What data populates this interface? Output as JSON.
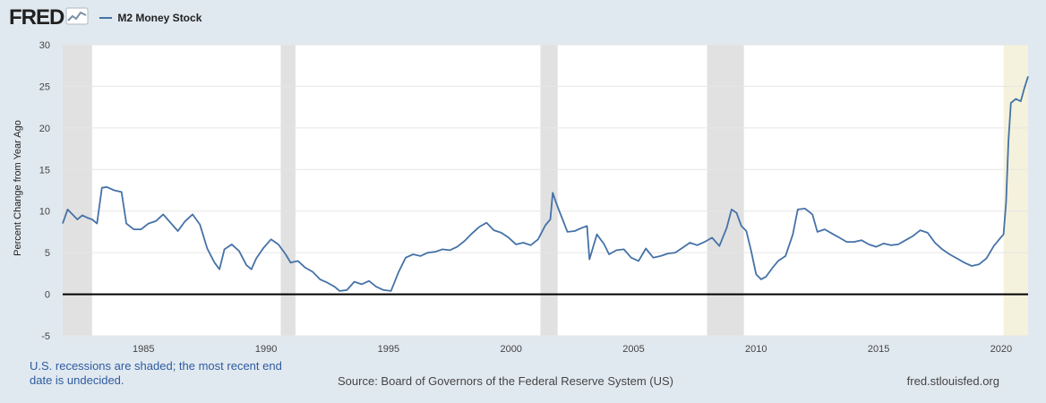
{
  "header": {
    "logo_text": "FRED",
    "logo_icon": "line-chart-icon",
    "legend_label": "M2 Money Stock"
  },
  "footer": {
    "note": "U.S. recessions are shaded; the most recent end date is undecided.",
    "source": "Source: Board of Governors of the Federal Reserve System (US)",
    "site": "fred.stlouisfed.org"
  },
  "colors": {
    "line": "#4572a7",
    "recession": "#e1e1e1",
    "undecided": "#f4f2dc",
    "zero_line": "#000000",
    "background": "#e1e9f0"
  },
  "chart_data": {
    "type": "line",
    "title": "",
    "xlabel": "",
    "ylabel": "Percent Change from Year Ago",
    "xlim": [
      1981.7,
      2021.1
    ],
    "ylim": [
      -5,
      30
    ],
    "yticks": [
      -5,
      0,
      5,
      10,
      15,
      20,
      25,
      30
    ],
    "xticks": [
      1985,
      1990,
      1995,
      2000,
      2005,
      2010,
      2015,
      2020
    ],
    "grid": true,
    "legend": "top-left",
    "recessions": [
      {
        "start": 1981.7,
        "end": 1982.9
      },
      {
        "start": 1990.6,
        "end": 1991.2
      },
      {
        "start": 2001.2,
        "end": 2001.9
      },
      {
        "start": 2008.0,
        "end": 2009.5
      }
    ],
    "undecided_recession": {
      "start": 2020.1,
      "end": 2021.1
    },
    "series": [
      {
        "name": "M2 Money Stock",
        "points": [
          [
            1981.7,
            8.5
          ],
          [
            1981.9,
            10.2
          ],
          [
            1982.1,
            9.6
          ],
          [
            1982.3,
            9.0
          ],
          [
            1982.5,
            9.5
          ],
          [
            1982.7,
            9.2
          ],
          [
            1982.9,
            9.0
          ],
          [
            1983.1,
            8.5
          ],
          [
            1983.3,
            12.8
          ],
          [
            1983.5,
            12.9
          ],
          [
            1983.8,
            12.5
          ],
          [
            1984.1,
            12.3
          ],
          [
            1984.3,
            8.5
          ],
          [
            1984.6,
            7.8
          ],
          [
            1984.9,
            7.8
          ],
          [
            1985.2,
            8.5
          ],
          [
            1985.5,
            8.8
          ],
          [
            1985.8,
            9.6
          ],
          [
            1986.1,
            8.6
          ],
          [
            1986.4,
            7.6
          ],
          [
            1986.7,
            8.8
          ],
          [
            1987.0,
            9.6
          ],
          [
            1987.3,
            8.4
          ],
          [
            1987.6,
            5.5
          ],
          [
            1987.9,
            3.8
          ],
          [
            1988.1,
            3.0
          ],
          [
            1988.3,
            5.4
          ],
          [
            1988.6,
            6.0
          ],
          [
            1988.9,
            5.2
          ],
          [
            1989.2,
            3.5
          ],
          [
            1989.4,
            3.0
          ],
          [
            1989.6,
            4.3
          ],
          [
            1989.9,
            5.6
          ],
          [
            1990.2,
            6.6
          ],
          [
            1990.5,
            6.0
          ],
          [
            1990.8,
            4.8
          ],
          [
            1991.0,
            3.8
          ],
          [
            1991.3,
            4.0
          ],
          [
            1991.6,
            3.2
          ],
          [
            1991.9,
            2.7
          ],
          [
            1992.2,
            1.8
          ],
          [
            1992.5,
            1.4
          ],
          [
            1992.8,
            0.9
          ],
          [
            1993.0,
            0.4
          ],
          [
            1993.3,
            0.5
          ],
          [
            1993.6,
            1.5
          ],
          [
            1993.9,
            1.2
          ],
          [
            1994.2,
            1.6
          ],
          [
            1994.5,
            0.9
          ],
          [
            1994.8,
            0.5
          ],
          [
            1995.1,
            0.4
          ],
          [
            1995.4,
            2.6
          ],
          [
            1995.7,
            4.4
          ],
          [
            1996.0,
            4.8
          ],
          [
            1996.3,
            4.6
          ],
          [
            1996.6,
            5.0
          ],
          [
            1996.9,
            5.1
          ],
          [
            1997.2,
            5.4
          ],
          [
            1997.5,
            5.3
          ],
          [
            1997.8,
            5.7
          ],
          [
            1998.1,
            6.4
          ],
          [
            1998.4,
            7.3
          ],
          [
            1998.7,
            8.1
          ],
          [
            1999.0,
            8.6
          ],
          [
            1999.3,
            7.7
          ],
          [
            1999.6,
            7.4
          ],
          [
            1999.9,
            6.8
          ],
          [
            2000.2,
            6.0
          ],
          [
            2000.5,
            6.2
          ],
          [
            2000.8,
            5.9
          ],
          [
            2001.1,
            6.6
          ],
          [
            2001.4,
            8.3
          ],
          [
            2001.6,
            9.0
          ],
          [
            2001.7,
            12.2
          ],
          [
            2001.9,
            10.5
          ],
          [
            2002.1,
            9.0
          ],
          [
            2002.3,
            7.5
          ],
          [
            2002.6,
            7.6
          ],
          [
            2002.9,
            8.0
          ],
          [
            2003.1,
            8.2
          ],
          [
            2003.2,
            4.2
          ],
          [
            2003.5,
            7.2
          ],
          [
            2003.8,
            6.0
          ],
          [
            2004.0,
            4.8
          ],
          [
            2004.3,
            5.3
          ],
          [
            2004.6,
            5.4
          ],
          [
            2004.9,
            4.4
          ],
          [
            2005.2,
            4.0
          ],
          [
            2005.5,
            5.5
          ],
          [
            2005.8,
            4.4
          ],
          [
            2006.1,
            4.6
          ],
          [
            2006.4,
            4.9
          ],
          [
            2006.7,
            5.0
          ],
          [
            2007.0,
            5.6
          ],
          [
            2007.3,
            6.2
          ],
          [
            2007.6,
            5.9
          ],
          [
            2007.9,
            6.3
          ],
          [
            2008.2,
            6.8
          ],
          [
            2008.5,
            5.8
          ],
          [
            2008.8,
            8.0
          ],
          [
            2009.0,
            10.2
          ],
          [
            2009.2,
            9.8
          ],
          [
            2009.4,
            8.2
          ],
          [
            2009.6,
            7.6
          ],
          [
            2009.8,
            5.2
          ],
          [
            2010.0,
            2.4
          ],
          [
            2010.2,
            1.8
          ],
          [
            2010.4,
            2.1
          ],
          [
            2010.7,
            3.3
          ],
          [
            2010.9,
            4.0
          ],
          [
            2011.2,
            4.6
          ],
          [
            2011.5,
            7.2
          ],
          [
            2011.7,
            10.2
          ],
          [
            2012.0,
            10.3
          ],
          [
            2012.3,
            9.6
          ],
          [
            2012.5,
            7.5
          ],
          [
            2012.8,
            7.8
          ],
          [
            2013.1,
            7.3
          ],
          [
            2013.4,
            6.8
          ],
          [
            2013.7,
            6.3
          ],
          [
            2014.0,
            6.3
          ],
          [
            2014.3,
            6.5
          ],
          [
            2014.6,
            6.0
          ],
          [
            2014.9,
            5.7
          ],
          [
            2015.2,
            6.1
          ],
          [
            2015.5,
            5.9
          ],
          [
            2015.8,
            6.0
          ],
          [
            2016.1,
            6.5
          ],
          [
            2016.4,
            7.0
          ],
          [
            2016.7,
            7.7
          ],
          [
            2017.0,
            7.4
          ],
          [
            2017.3,
            6.2
          ],
          [
            2017.6,
            5.4
          ],
          [
            2017.9,
            4.8
          ],
          [
            2018.2,
            4.3
          ],
          [
            2018.5,
            3.8
          ],
          [
            2018.8,
            3.4
          ],
          [
            2019.1,
            3.6
          ],
          [
            2019.4,
            4.3
          ],
          [
            2019.7,
            5.8
          ],
          [
            2019.95,
            6.7
          ],
          [
            2020.1,
            7.2
          ],
          [
            2020.2,
            11.0
          ],
          [
            2020.3,
            18.5
          ],
          [
            2020.4,
            23.0
          ],
          [
            2020.6,
            23.5
          ],
          [
            2020.8,
            23.2
          ],
          [
            2020.95,
            24.8
          ],
          [
            2021.1,
            26.2
          ]
        ]
      }
    ]
  }
}
